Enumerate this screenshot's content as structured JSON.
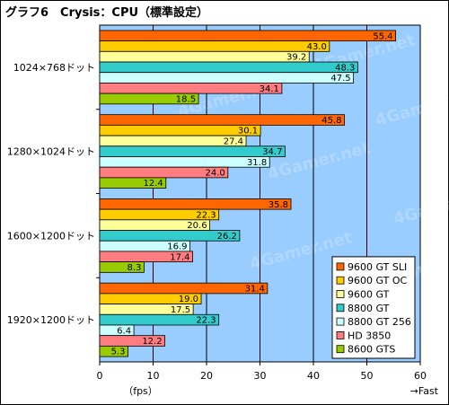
{
  "title": "グラフ6　Crysis：CPU（標準設定）",
  "watermark": "4Gamer.net",
  "chart_data": {
    "type": "bar",
    "orientation": "horizontal",
    "categories": [
      "1024×768ドット",
      "1280×1024ドット",
      "1600×1200ドット",
      "1920×1200ドット"
    ],
    "series": [
      {
        "name": "9600 GT SLI",
        "color": "#ff6600",
        "values": [
          55.4,
          45.8,
          35.8,
          31.4
        ]
      },
      {
        "name": "9600 GT OC",
        "color": "#ffcc00",
        "values": [
          43.0,
          30.1,
          22.3,
          19.0
        ]
      },
      {
        "name": "9600 GT",
        "color": "#ffff99",
        "values": [
          39.2,
          27.4,
          20.6,
          17.5
        ]
      },
      {
        "name": "8800 GT",
        "color": "#33cccc",
        "values": [
          48.3,
          34.7,
          26.2,
          22.3
        ]
      },
      {
        "name": "8800 GT 256",
        "color": "#ccffff",
        "values": [
          47.5,
          31.8,
          16.9,
          6.4
        ]
      },
      {
        "name": "HD 3850",
        "color": "#ff7c80",
        "values": [
          34.1,
          24.0,
          17.4,
          12.2
        ]
      },
      {
        "name": "8600 GTS",
        "color": "#99cc00",
        "values": [
          18.5,
          12.4,
          8.3,
          5.3
        ]
      }
    ],
    "xlim": [
      0,
      60
    ],
    "xticks": [
      0,
      10,
      20,
      30,
      40,
      50,
      60
    ],
    "xlabel": "（fps）",
    "xlabel_right": "→Fast",
    "plot_background": "#99ccff",
    "legend_position": "bottom-right",
    "grid": true
  }
}
